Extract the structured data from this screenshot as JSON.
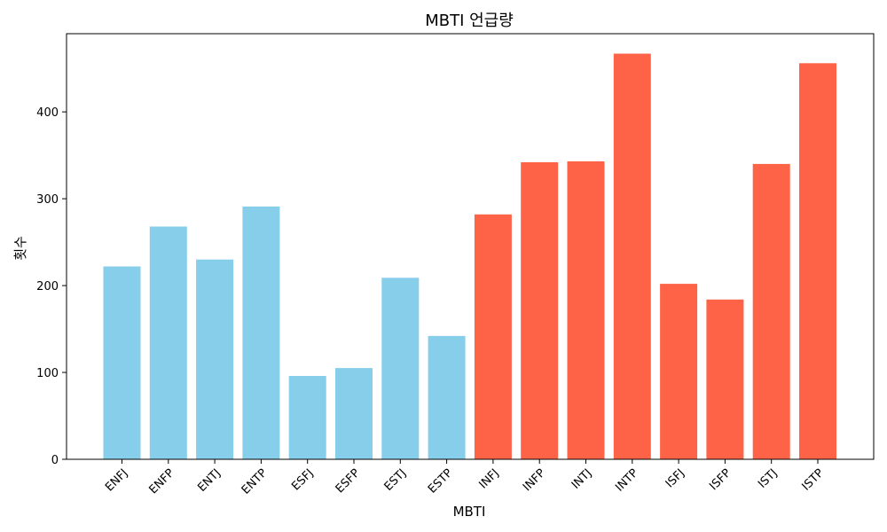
{
  "chart_data": {
    "type": "bar",
    "title": "MBTI 언급량",
    "xlabel": "MBTI",
    "ylabel": "횟수",
    "categories": [
      "ENFJ",
      "ENFP",
      "ENTJ",
      "ENTP",
      "ESFJ",
      "ESFP",
      "ESTJ",
      "ESTP",
      "INFJ",
      "INFP",
      "INTJ",
      "INTP",
      "ISFJ",
      "ISFP",
      "ISTJ",
      "ISTP"
    ],
    "values": [
      222,
      268,
      230,
      291,
      96,
      105,
      209,
      142,
      282,
      342,
      343,
      467,
      202,
      184,
      340,
      456
    ],
    "bar_colors": [
      "#87CEEB",
      "#87CEEB",
      "#87CEEB",
      "#87CEEB",
      "#87CEEB",
      "#87CEEB",
      "#87CEEB",
      "#87CEEB",
      "#FF6347",
      "#FF6347",
      "#FF6347",
      "#FF6347",
      "#FF6347",
      "#FF6347",
      "#FF6347",
      "#FF6347"
    ],
    "yticks": [
      0,
      100,
      200,
      300,
      400
    ],
    "ylim": [
      0,
      490
    ],
    "grid": false,
    "legend": "none"
  }
}
